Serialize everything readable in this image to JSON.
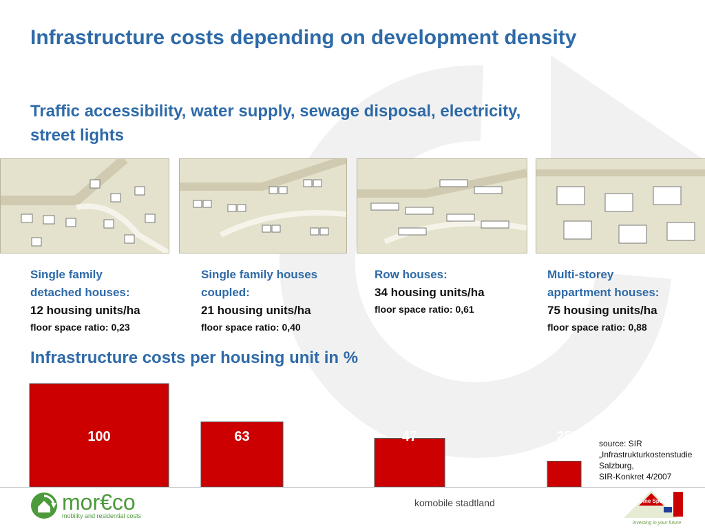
{
  "slide": {
    "title": "Infrastructure costs depending on development density",
    "subtitle": "Traffic accessibility, water supply, sewage disposal, electricity, street lights",
    "section_title": "Infrastructure costs per housing unit in %"
  },
  "columns": [
    {
      "type": "Single family\ndetached houses:",
      "units": "12 housing units/ha",
      "fsr": "floor space ratio:  0,23"
    },
    {
      "type": "Single family houses\ncoupled:",
      "units": "21 housing units/ha",
      "fsr": "floor space ratio: 0,40"
    },
    {
      "type": "Row houses:\n",
      "units": "34 housing units/ha",
      "fsr": "floor space ratio: 0,61"
    },
    {
      "type": "Multi-storey\nappartment houses:",
      "units": "75 housing units/ha",
      "fsr": "floor space ratio: 0,88"
    }
  ],
  "chart_data": {
    "type": "bar",
    "title": "Infrastructure costs per housing unit in %",
    "categories": [
      "Single family detached houses",
      "Single family houses coupled",
      "Row houses",
      "Multi-storey appartment houses"
    ],
    "values": [
      100,
      63,
      47,
      25
    ],
    "data_labels": [
      "100",
      "63",
      "47",
      "25"
    ],
    "ylim": [
      0,
      100
    ],
    "grid": false,
    "bar_color": "#cc0000"
  },
  "source": {
    "text": "source: SIR\n„Infrastrukturkostenstudie\nSalzburg,\nSIR-Konkret 4/2007"
  },
  "footer": {
    "logo_brand": "mor€co",
    "logo_sub": "mobility and residential costs",
    "center_text": "komobile stadtland",
    "partner_logo": "Alpine Space",
    "partner_tagline": "investing in your future"
  },
  "colors": {
    "heading": "#2e6aa8",
    "bar": "#cc0000",
    "brand_green": "#4c9a3c"
  },
  "icons": {
    "watermark": "circular-arrow-icon",
    "logo": "recycle-house-icon"
  }
}
